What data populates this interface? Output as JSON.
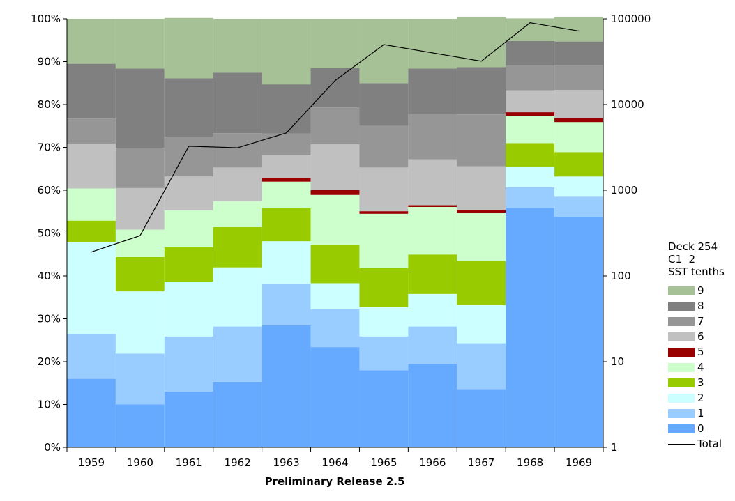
{
  "chart_data": {
    "type": "bar",
    "stacked": true,
    "percent_stacked": true,
    "xlabel": "Preliminary Release 2.5",
    "categories": [
      "1959",
      "1960",
      "1961",
      "1962",
      "1963",
      "1964",
      "1965",
      "1966",
      "1967",
      "1968",
      "1969"
    ],
    "y_left": {
      "ylim": [
        0,
        100
      ],
      "unit": "%",
      "ticks": [
        "0%",
        "10%",
        "20%",
        "30%",
        "40%",
        "50%",
        "60%",
        "70%",
        "80%",
        "90%",
        "100%"
      ]
    },
    "y_right": {
      "scale": "log",
      "ylim": [
        1,
        100000
      ],
      "ticks": [
        "1",
        "10",
        "100",
        "1000",
        "10000",
        "100000"
      ]
    },
    "legend_title": [
      "Deck 254",
      "C1  2",
      "SST tenths"
    ],
    "legend_position": "right",
    "series": [
      {
        "name": "0",
        "color": "#66aaff",
        "values": [
          16,
          10,
          13,
          15.3,
          28.5,
          23.4,
          18,
          19.5,
          13.6,
          55.9,
          53.8
        ]
      },
      {
        "name": "1",
        "color": "#99ccff",
        "values": [
          10.5,
          11.9,
          12.9,
          12.9,
          9.6,
          8.8,
          7.9,
          8.7,
          10.7,
          4.8,
          4.7
        ]
      },
      {
        "name": "2",
        "color": "#ccffff",
        "values": [
          21.3,
          14.5,
          12.8,
          13.8,
          10,
          6.1,
          6.8,
          7.6,
          8.9,
          4.7,
          4.7
        ]
      },
      {
        "name": "3",
        "color": "#99cc00",
        "values": [
          5.1,
          8,
          8,
          9.4,
          7.7,
          8.9,
          9.1,
          9.2,
          10.3,
          5.6,
          5.7
        ]
      },
      {
        "name": "4",
        "color": "#ccffcc",
        "values": [
          7.5,
          6.4,
          8.6,
          6,
          6.2,
          11.7,
          12.7,
          11.1,
          11.3,
          6.3,
          7
        ]
      },
      {
        "name": "5",
        "color": "#990000",
        "values": [
          0,
          0,
          0,
          0,
          0.8,
          1.1,
          0.6,
          0.4,
          0.6,
          0.9,
          0.9
        ]
      },
      {
        "name": "6",
        "color": "#c0c0c0",
        "values": [
          10.5,
          9.7,
          7.9,
          7.9,
          5.3,
          10.7,
          10.2,
          10.7,
          10.2,
          5.1,
          6.6
        ]
      },
      {
        "name": "7",
        "color": "#969696",
        "values": [
          5.8,
          9.4,
          9.3,
          8,
          5.1,
          8.6,
          9.7,
          10.6,
          12.1,
          5.8,
          5.8
        ]
      },
      {
        "name": "8",
        "color": "#808080",
        "values": [
          12.8,
          18.5,
          13.6,
          14.1,
          11.5,
          9.2,
          10,
          10.6,
          11,
          5.7,
          5.5
        ]
      },
      {
        "name": "9",
        "color": "#a5c195",
        "values": [
          10.5,
          11.6,
          14.1,
          12.6,
          15.3,
          11.5,
          15,
          11.6,
          11.8,
          5.3,
          5.8
        ]
      }
    ],
    "line_series": {
      "name": "Total",
      "axis": "right",
      "color": "#000000",
      "values": [
        190,
        295,
        3260,
        3130,
        4660,
        19000,
        50000,
        40000,
        32000,
        90000,
        72000
      ]
    }
  }
}
